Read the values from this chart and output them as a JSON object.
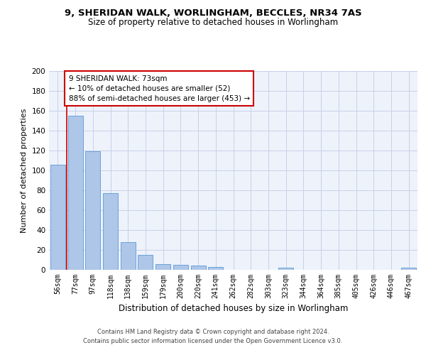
{
  "title1": "9, SHERIDAN WALK, WORLINGHAM, BECCLES, NR34 7AS",
  "title2": "Size of property relative to detached houses in Worlingham",
  "xlabel": "Distribution of detached houses by size in Worlingham",
  "ylabel": "Number of detached properties",
  "categories": [
    "56sqm",
    "77sqm",
    "97sqm",
    "118sqm",
    "138sqm",
    "159sqm",
    "179sqm",
    "200sqm",
    "220sqm",
    "241sqm",
    "262sqm",
    "282sqm",
    "303sqm",
    "323sqm",
    "344sqm",
    "364sqm",
    "385sqm",
    "405sqm",
    "426sqm",
    "446sqm",
    "467sqm"
  ],
  "values": [
    106,
    155,
    119,
    77,
    28,
    15,
    6,
    5,
    4,
    3,
    0,
    0,
    0,
    2,
    0,
    0,
    0,
    0,
    0,
    0,
    2
  ],
  "bar_color": "#aec6e8",
  "bar_edge_color": "#5b9bd5",
  "vline_color": "#cc0000",
  "annotation_text": "9 SHERIDAN WALK: 73sqm\n← 10% of detached houses are smaller (52)\n88% of semi-detached houses are larger (453) →",
  "annotation_box_color": "#ffffff",
  "annotation_box_edge": "#cc0000",
  "background_color": "#eef2fb",
  "grid_color": "#c8d0e8",
  "ylim": [
    0,
    200
  ],
  "yticks": [
    0,
    20,
    40,
    60,
    80,
    100,
    120,
    140,
    160,
    180,
    200
  ],
  "footer1": "Contains HM Land Registry data © Crown copyright and database right 2024.",
  "footer2": "Contains public sector information licensed under the Open Government Licence v3.0."
}
